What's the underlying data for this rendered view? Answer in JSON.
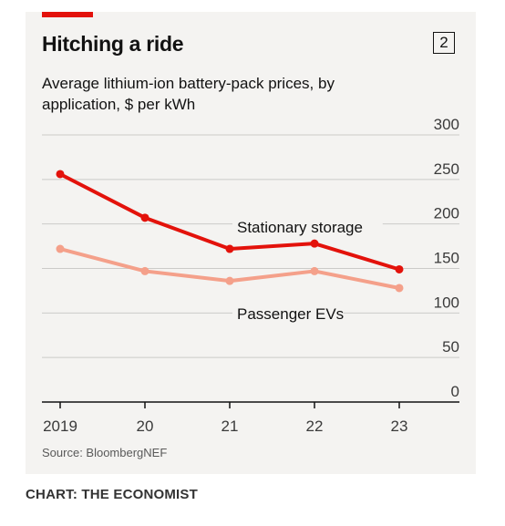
{
  "header": {
    "title": "Hitching a ride",
    "chart_number": "2",
    "subtitle": "Average lithium-ion battery-pack prices, by application, $ per kWh"
  },
  "footer": {
    "source": "Source: BloombergNEF",
    "credit": "CHART: THE ECONOMIST"
  },
  "colors": {
    "stationary": "#e3120b",
    "passenger": "#f4a08a",
    "accent": "#e3120b",
    "card_background": "#f4f3f1"
  },
  "chart_data": {
    "type": "line",
    "title": "Hitching a ride",
    "subtitle": "Average lithium-ion battery-pack prices, by application, $ per kWh",
    "categories": [
      "2019",
      "20",
      "21",
      "22",
      "23"
    ],
    "y_ticks": [
      "300",
      "250",
      "200",
      "150",
      "100",
      "50",
      "0"
    ],
    "ylim": [
      0,
      300
    ],
    "y_axis_side": "right",
    "grid": true,
    "series": [
      {
        "name": "Stationary storage",
        "values": [
          256,
          207,
          172,
          178,
          149
        ]
      },
      {
        "name": "Passenger EVs",
        "values": [
          172,
          147,
          136,
          147,
          128
        ]
      }
    ]
  }
}
